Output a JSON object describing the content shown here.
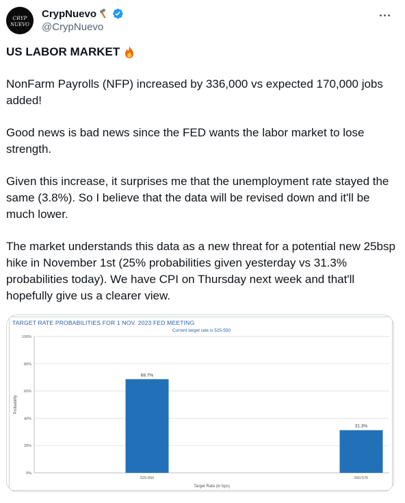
{
  "author": {
    "display_name": "CrypNuevo",
    "handle": "@CrypNuevo",
    "avatar_text_line1": "CRYP",
    "avatar_text_line2": "NUEVO",
    "name_emoji": "hammer-icon",
    "verified": true,
    "verified_color": "#1d9bf0"
  },
  "tweet": {
    "title": "US LABOR MARKET",
    "title_emoji": "fire-icon",
    "paragraphs": [
      "NonFarm Payrolls (NFP) increased by 336,000 vs expected 170,000 jobs added!",
      "Good news is bad news since the FED wants the labor market to lose strength.",
      "Given this increase, it surprises me that the unemployment rate stayed the same (3.8%). So I believe that the data will be revised down and it'll be much lower.",
      "The market understands this data as a new threat for a potential new 25bsp hike in November 1st (25% probabilities given yesterday vs 31.3% probabilities today). We have CPI on Thursday next week and that'll hopefully give us a clearer view."
    ]
  },
  "chart_data": {
    "type": "bar",
    "title": "TARGET RATE PROBABILITIES FOR 1 NOV. 2023 FED MEETING",
    "subtitle": "Current target rate is 525-550",
    "categories": [
      "525-550",
      "550-575"
    ],
    "values": [
      68.7,
      31.3
    ],
    "data_labels": [
      "68.7%",
      "31.3%"
    ],
    "xlabel": "Target Rate (in bps)",
    "ylabel": "Probability",
    "ylim": [
      0,
      100
    ],
    "yticks": [
      0,
      20,
      40,
      60,
      80,
      100
    ],
    "ytick_labels": [
      "0%",
      "20%",
      "40%",
      "60%",
      "80%",
      "100%"
    ],
    "grid": true,
    "bar_color": "#2271b8",
    "title_color": "#2a5ea8"
  }
}
